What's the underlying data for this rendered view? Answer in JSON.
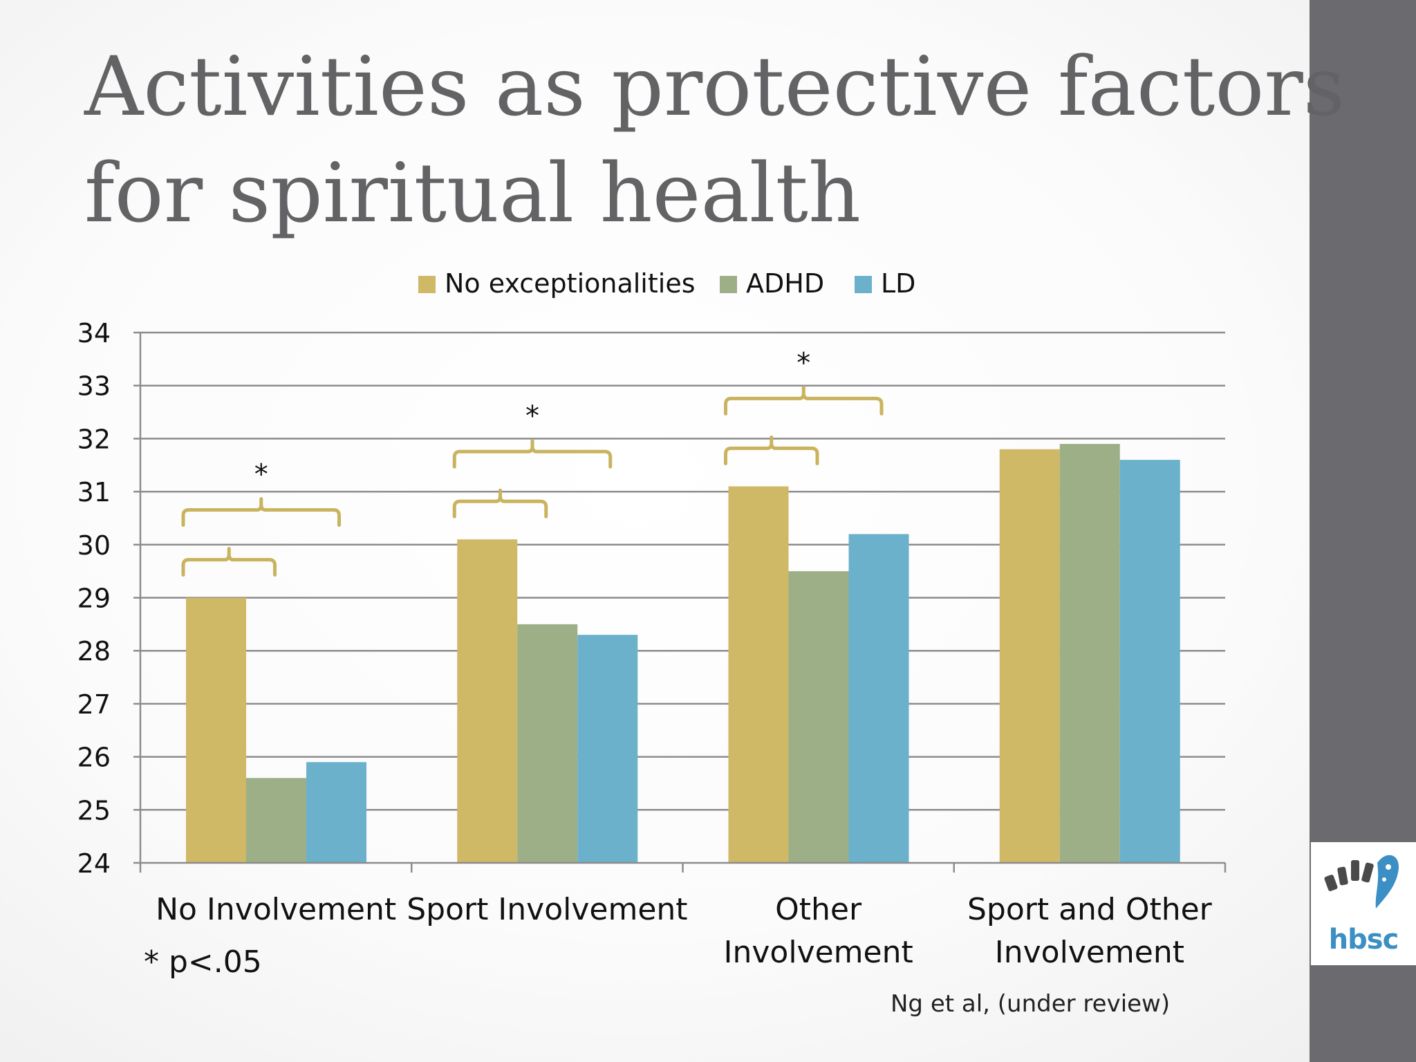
{
  "slide": {
    "title_lines": [
      "Activities as protective factors",
      "for spiritual health"
    ],
    "footnote": "* p<.05",
    "source": "Ng et al, (under review)",
    "logo_text": "hbsc"
  },
  "colors": {
    "no_exceptionalities": "#cfb866",
    "adhd": "#9caf86",
    "ld": "#6bb1cc",
    "bracket": "#c9b35e",
    "sidebar": "#6b6a6f",
    "title": "#636366"
  },
  "chart_data": {
    "type": "bar",
    "categories": [
      [
        "No Involvement"
      ],
      [
        "Sport Involvement"
      ],
      [
        "Other",
        "Involvement"
      ],
      [
        "Sport and Other",
        "Involvement"
      ]
    ],
    "series": [
      {
        "name": "No exceptionalities",
        "values": [
          29.0,
          30.1,
          31.1,
          31.8
        ]
      },
      {
        "name": "ADHD",
        "values": [
          25.6,
          28.5,
          29.5,
          31.9
        ]
      },
      {
        "name": "LD",
        "values": [
          25.9,
          28.3,
          30.2,
          31.6
        ]
      }
    ],
    "ylim": [
      24,
      34
    ],
    "yticks": [
      24,
      25,
      26,
      27,
      28,
      29,
      30,
      31,
      32,
      33,
      34
    ],
    "grid": true,
    "legend_position": "top-center",
    "significance_marker": "*",
    "significance_categories": [
      0,
      1,
      2
    ]
  }
}
